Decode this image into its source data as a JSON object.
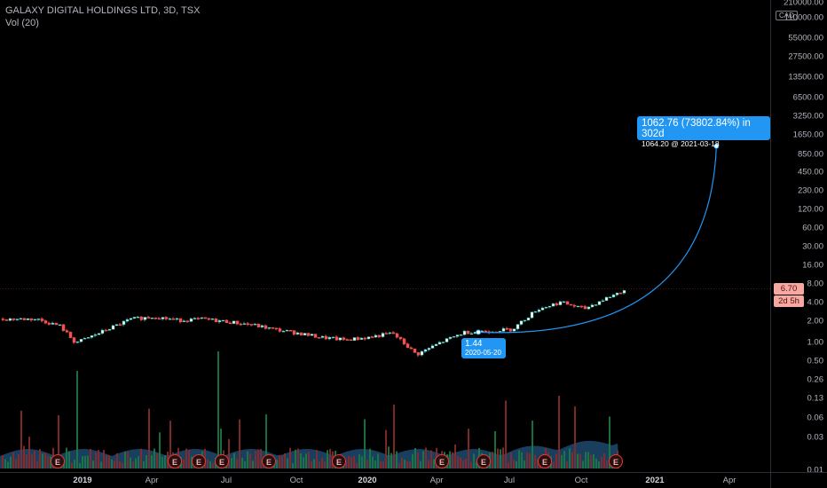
{
  "legend": {
    "title": "GALAXY DIGITAL HOLDINGS LTD, 3D, TSX",
    "volume": "Vol (20)"
  },
  "price_axis": {
    "currency": "CAD",
    "ticks": [
      "210000.00",
      "110000.00",
      "55000.00",
      "27500.00",
      "13500.00",
      "6500.00",
      "3250.00",
      "1650.00",
      "850.00",
      "450.00",
      "230.00",
      "120.00",
      "60.00",
      "30.00",
      "16.00",
      "8.00",
      "4.00",
      "2.00",
      "1.00",
      "0.50",
      "0.26",
      "0.13",
      "0.06",
      "0.03",
      "0.01"
    ],
    "last_price": "6.70",
    "countdown": "2d 5h"
  },
  "time_axis": {
    "labels": [
      "2019",
      "Apr",
      "Jul",
      "Oct",
      "2020",
      "Apr",
      "Jul",
      "Oct",
      "2021",
      "Apr"
    ],
    "bold": [
      "2019",
      "2020",
      "2021"
    ]
  },
  "projection": {
    "summary": "1062.76 (73802.84%) in 302d",
    "target": "1064.20 @ 2021-03-18",
    "start_price": "1.44",
    "start_date": "2020-05-20"
  },
  "earnings": {
    "label": "E",
    "count": 10
  },
  "colors": {
    "up": "#26a69a",
    "down": "#ef5350",
    "volume_area": "#1e4a6e",
    "projection": "#2196f3",
    "background": "#000000"
  },
  "chart_data": {
    "type": "candlestick",
    "title": "GALAXY DIGITAL HOLDINGS LTD, 3D, TSX",
    "scale": "log",
    "xlabel": "",
    "ylabel": "",
    "ylim": [
      0.01,
      210000
    ],
    "x_range": [
      "2018-11",
      "2021-05"
    ],
    "close_path": [
      {
        "date": "2018-11",
        "close": 2.3
      },
      {
        "date": "2018-12",
        "close": 1.8
      },
      {
        "date": "2018-12-20",
        "close": 1.0
      },
      {
        "date": "2019-01",
        "close": 1.1
      },
      {
        "date": "2019-02",
        "close": 1.6
      },
      {
        "date": "2019-03",
        "close": 2.3
      },
      {
        "date": "2019-04",
        "close": 2.5
      },
      {
        "date": "2019-05",
        "close": 2.2
      },
      {
        "date": "2019-06",
        "close": 2.3
      },
      {
        "date": "2019-07",
        "close": 2.1
      },
      {
        "date": "2019-08",
        "close": 1.9
      },
      {
        "date": "2019-09",
        "close": 1.6
      },
      {
        "date": "2019-10",
        "close": 1.4
      },
      {
        "date": "2019-11",
        "close": 1.2
      },
      {
        "date": "2019-12",
        "close": 1.1
      },
      {
        "date": "2020-01",
        "close": 1.2
      },
      {
        "date": "2020-02",
        "close": 1.4
      },
      {
        "date": "2020-03",
        "close": 0.65
      },
      {
        "date": "2020-04",
        "close": 1.0
      },
      {
        "date": "2020-05",
        "close": 1.44
      },
      {
        "date": "2020-06",
        "close": 1.5
      },
      {
        "date": "2020-07",
        "close": 1.6
      },
      {
        "date": "2020-08",
        "close": 3.2
      },
      {
        "date": "2020-09",
        "close": 4.2
      },
      {
        "date": "2020-10",
        "close": 3.3
      },
      {
        "date": "2020-11",
        "close": 5.0
      },
      {
        "date": "2020-11-25",
        "close": 6.7
      }
    ],
    "projection": {
      "from_date": "2020-05-20",
      "from": 1.44,
      "to_date": "2021-03-18",
      "to": 1064.2,
      "change": "1062.76 (73802.84%) in 302d"
    },
    "grid": false,
    "legend": "top-left"
  }
}
